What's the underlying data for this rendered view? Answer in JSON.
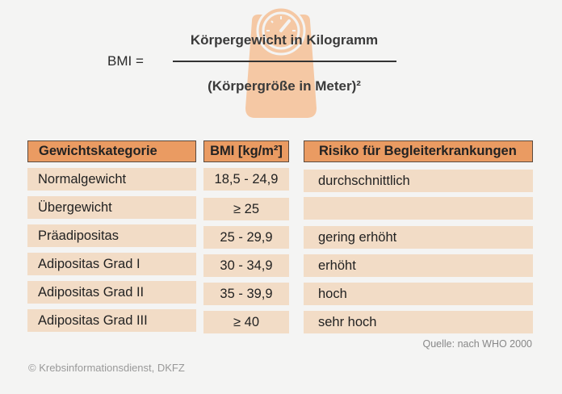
{
  "formula": {
    "lhs": "BMI  =",
    "numerator": "Körpergewicht in Kilogramm",
    "denominator": "(Körpergröße in Meter)²"
  },
  "table": {
    "headers": [
      "Gewichtskategorie",
      "BMI [kg/m²]",
      "Risiko für Begleiterkrankungen"
    ],
    "rows": [
      {
        "category": "Normalgewicht",
        "bmi": "18,5 - 24,9",
        "risk": "durchschnittlich"
      },
      {
        "category": "Übergewicht",
        "bmi": "≥ 25",
        "risk": ""
      },
      {
        "category": "Präadipositas",
        "bmi": "25 - 29,9",
        "risk": "gering erhöht"
      },
      {
        "category": "Adipositas Grad I",
        "bmi": "30 - 34,9",
        "risk": "erhöht"
      },
      {
        "category": "Adipositas Grad II",
        "bmi": "35 - 39,9",
        "risk": "hoch"
      },
      {
        "category": "Adipositas Grad III",
        "bmi": "≥ 40",
        "risk": "sehr hoch"
      }
    ]
  },
  "source": "Quelle: nach WHO 2000",
  "copyright": "© Krebsinformationsdienst, DKFZ",
  "colors": {
    "header": "#ea9b62",
    "cell": "#f2dcc6",
    "icon": "#f5c8a4",
    "background": "#f4f4f3"
  },
  "icons": {
    "decoration": "scale-icon"
  }
}
